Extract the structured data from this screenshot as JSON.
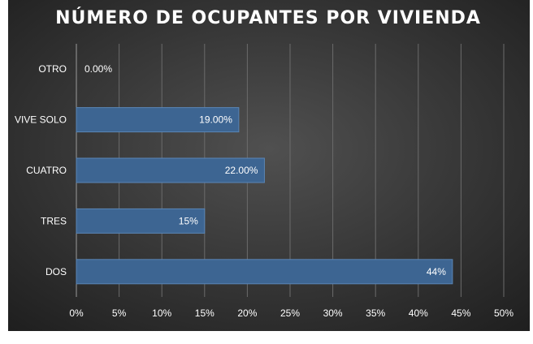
{
  "chart_data": {
    "type": "bar",
    "orientation": "horizontal",
    "title": "NÚMERO DE OCUPANTES POR VIVIENDA",
    "xlabel": "",
    "ylabel": "",
    "categories": [
      "OTRO",
      "VIVE SOLO",
      "CUATRO",
      "TRES",
      "DOS"
    ],
    "values": [
      0,
      19,
      22,
      15,
      44
    ],
    "data_labels": [
      "0.00%",
      "19.00%",
      "22.00%",
      "15%",
      "44%"
    ],
    "xlim": [
      0,
      50
    ],
    "x_ticks": [
      "0%",
      "5%",
      "10%",
      "15%",
      "20%",
      "25%",
      "30%",
      "35%",
      "40%",
      "45%",
      "50%"
    ],
    "grid": "vertical",
    "legend": "none",
    "colors": {
      "bar": "#3d6592",
      "bar_edge": "#5a85b5",
      "background_center": "#505050",
      "background_edge": "#1e1e1e",
      "gridline": "#6b6b6b",
      "text": "#ffffff"
    }
  }
}
